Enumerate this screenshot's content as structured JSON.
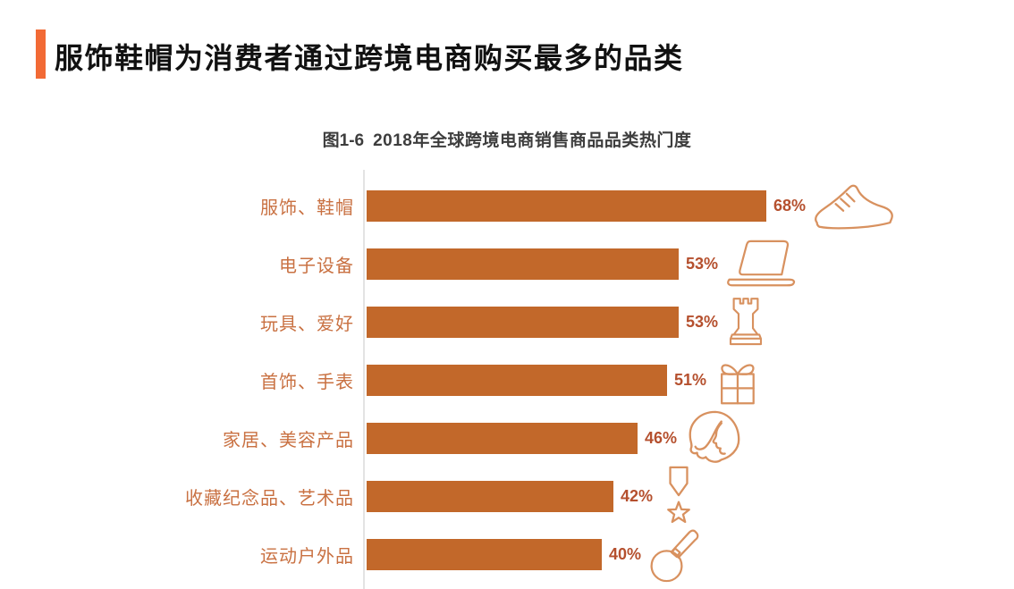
{
  "page": {
    "title": "服饰鞋帽为消费者通过跨境电商购买最多的品类"
  },
  "chart_data": {
    "type": "bar",
    "orientation": "horizontal",
    "title": "2018年全球跨境电商销售商品品类热门度",
    "title_prefix": "图1-6",
    "categories": [
      "服饰、鞋帽",
      "电子设备",
      "玩具、爱好",
      "首饰、手表",
      "家居、美容产品",
      "收藏纪念品、艺术品",
      "运动户外品"
    ],
    "values": [
      68,
      53,
      53,
      51,
      46,
      42,
      40
    ],
    "value_labels": [
      "68%",
      "53%",
      "53%",
      "51%",
      "46%",
      "42%",
      "40%"
    ],
    "icons": [
      "sneaker-icon",
      "laptop-icon",
      "chess-rook-icon",
      "gift-icon",
      "woman-face-icon",
      "medal-icon",
      "whistle-icon"
    ],
    "unit": "%",
    "xlim": [
      0,
      100
    ],
    "grid": false,
    "legend": "none",
    "colors": {
      "bar": "#c2682a",
      "category_label": "#c97142",
      "value_label": "#b5502e",
      "icon_stroke": "#d8915f",
      "accent_bar": "#f26a35",
      "axis_line": "#e3e3e3",
      "title_text": "#111111",
      "chart_title_text": "#3d3d3d",
      "background": "#ffffff"
    }
  }
}
